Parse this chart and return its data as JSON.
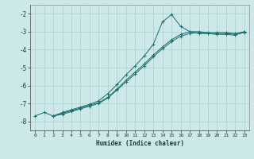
{
  "xlabel": "Humidex (Indice chaleur)",
  "bg_color": "#cce8e8",
  "grid_color": "#aacfcf",
  "line_color": "#1a6e6e",
  "xlim": [
    -0.5,
    23.5
  ],
  "ylim": [
    -8.5,
    -1.5
  ],
  "yticks": [
    -8,
    -7,
    -6,
    -5,
    -4,
    -3,
    -2
  ],
  "xticks": [
    0,
    1,
    2,
    3,
    4,
    5,
    6,
    7,
    8,
    9,
    10,
    11,
    12,
    13,
    14,
    15,
    16,
    17,
    18,
    19,
    20,
    21,
    22,
    23
  ],
  "line1_x": [
    0,
    1,
    2,
    3,
    4,
    5,
    6,
    7,
    8,
    9,
    10,
    11,
    12,
    13,
    14,
    15,
    16,
    17,
    18,
    19,
    20,
    21,
    22,
    23
  ],
  "line1_y": [
    -7.7,
    -7.5,
    -7.7,
    -7.5,
    -7.35,
    -7.2,
    -7.05,
    -6.85,
    -6.45,
    -5.95,
    -5.4,
    -4.9,
    -4.35,
    -3.7,
    -2.45,
    -2.05,
    -2.7,
    -3.0,
    -3.1,
    -3.1,
    -3.15,
    -3.15,
    -3.2,
    -3.0
  ],
  "line2_x": [
    2,
    3,
    4,
    5,
    6,
    7,
    8,
    9,
    10,
    11,
    12,
    13,
    14,
    15,
    16,
    17,
    18,
    19,
    20,
    21,
    22,
    23
  ],
  "line2_y": [
    -7.7,
    -7.55,
    -7.4,
    -7.25,
    -7.1,
    -6.95,
    -6.65,
    -6.2,
    -5.7,
    -5.25,
    -4.8,
    -4.3,
    -3.85,
    -3.45,
    -3.15,
    -3.0,
    -3.0,
    -3.05,
    -3.05,
    -3.05,
    -3.1,
    -3.0
  ],
  "line3_x": [
    2,
    3,
    4,
    5,
    6,
    7,
    8,
    9,
    10,
    11,
    12,
    13,
    14,
    15,
    16,
    17,
    18,
    19,
    20,
    21,
    22,
    23
  ],
  "line3_y": [
    -7.7,
    -7.6,
    -7.45,
    -7.3,
    -7.15,
    -7.0,
    -6.7,
    -6.25,
    -5.8,
    -5.35,
    -4.9,
    -4.4,
    -3.95,
    -3.55,
    -3.25,
    -3.1,
    -3.05,
    -3.1,
    -3.1,
    -3.1,
    -3.15,
    -3.05
  ]
}
